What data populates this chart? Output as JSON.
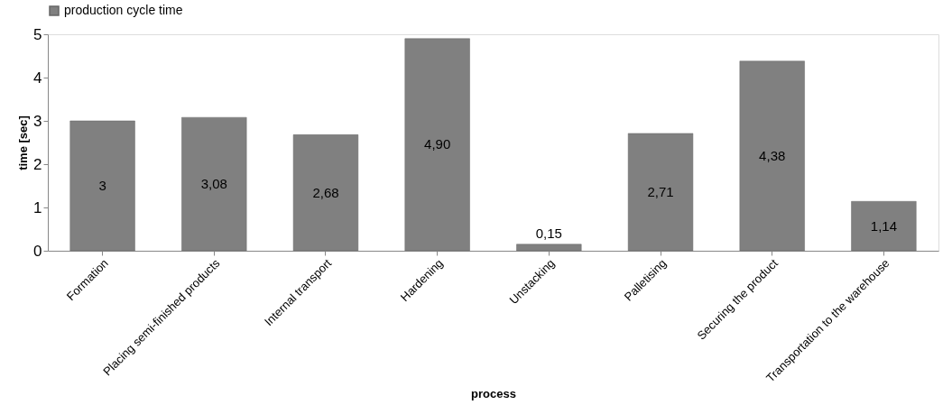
{
  "chart_data": {
    "type": "bar",
    "xlabel": "process",
    "ylabel": "time [sec]",
    "categories": [
      "Formation",
      "Placing semi-finished products",
      "Internal transport",
      "Hardening",
      "Unstacking",
      "Palletising",
      "Securing the product",
      "Transportation to the warehouse"
    ],
    "series": [
      {
        "name": "production cycle time",
        "color": "#808080",
        "values": [
          3,
          3.08,
          2.68,
          4.9,
          0.15,
          2.71,
          4.38,
          1.14
        ],
        "value_labels": [
          "3",
          "3,08",
          "2,68",
          "4,90",
          "0,15",
          "2,71",
          "4,38",
          "1,14"
        ]
      }
    ],
    "ylim": [
      0,
      5
    ],
    "yticks": [
      0,
      1,
      2,
      3,
      4,
      5
    ],
    "grid": false,
    "legend": "top"
  }
}
